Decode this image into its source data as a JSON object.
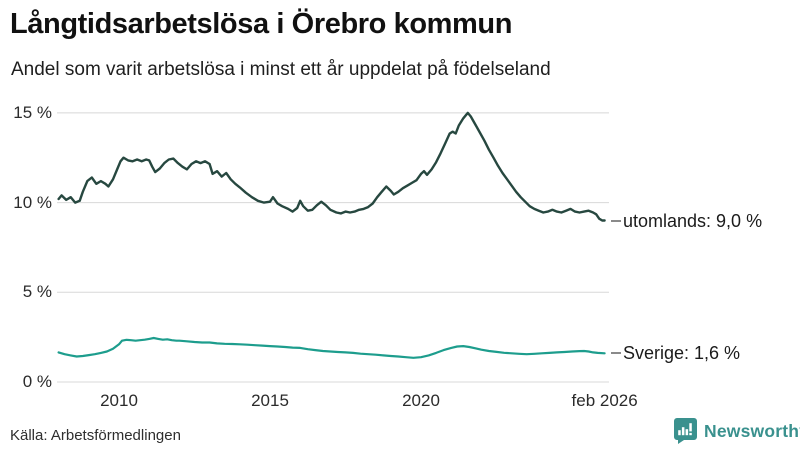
{
  "footer": {
    "brand": "Newsworthy"
  },
  "chart_data": {
    "type": "line",
    "title": "Långtidsarbetslösa i Örebro kommun",
    "subtitle": "Andel som varit arbetslösa i minst ett år uppdelat på födelseland",
    "source": "Källa: Arbetsförmedlingen",
    "grid": "horizontal-only",
    "legend_position": "end-of-line-labels",
    "grid_color": "#d8d8d8",
    "xlim": [
      2008.0,
      2026.4
    ],
    "ylim": [
      0,
      15.5
    ],
    "y_ticks": [
      {
        "v": 15,
        "label": "15 %"
      },
      {
        "v": 10,
        "label": "10 %"
      },
      {
        "v": 5,
        "label": "5 %"
      },
      {
        "v": 0,
        "label": "0 %"
      }
    ],
    "x_ticks": [
      {
        "v": 2010,
        "label": "2010"
      },
      {
        "v": 2015,
        "label": "2015"
      },
      {
        "v": 2020,
        "label": "2020"
      },
      {
        "v": 2026.08,
        "label": "feb 2026"
      }
    ],
    "series": [
      {
        "name": "utomlands",
        "end_label": "utomlands: 9,0 %",
        "end_value": "9,0 %",
        "color": "#274840",
        "stroke_width": 2.4,
        "points": [
          [
            2008.0,
            10.2
          ],
          [
            2008.1,
            10.4
          ],
          [
            2008.25,
            10.15
          ],
          [
            2008.4,
            10.3
          ],
          [
            2008.55,
            10.0
          ],
          [
            2008.7,
            10.1
          ],
          [
            2008.8,
            10.6
          ],
          [
            2008.95,
            11.2
          ],
          [
            2009.1,
            11.4
          ],
          [
            2009.25,
            11.05
          ],
          [
            2009.4,
            11.2
          ],
          [
            2009.55,
            11.05
          ],
          [
            2009.65,
            10.9
          ],
          [
            2009.8,
            11.3
          ],
          [
            2009.95,
            11.9
          ],
          [
            2010.05,
            12.3
          ],
          [
            2010.15,
            12.5
          ],
          [
            2010.3,
            12.35
          ],
          [
            2010.45,
            12.3
          ],
          [
            2010.6,
            12.4
          ],
          [
            2010.75,
            12.3
          ],
          [
            2010.9,
            12.4
          ],
          [
            2011.0,
            12.35
          ],
          [
            2011.1,
            12.0
          ],
          [
            2011.2,
            11.7
          ],
          [
            2011.35,
            11.9
          ],
          [
            2011.5,
            12.2
          ],
          [
            2011.65,
            12.4
          ],
          [
            2011.8,
            12.45
          ],
          [
            2011.95,
            12.2
          ],
          [
            2012.1,
            12.0
          ],
          [
            2012.25,
            11.85
          ],
          [
            2012.4,
            12.15
          ],
          [
            2012.55,
            12.3
          ],
          [
            2012.7,
            12.2
          ],
          [
            2012.85,
            12.3
          ],
          [
            2013.0,
            12.15
          ],
          [
            2013.1,
            11.6
          ],
          [
            2013.25,
            11.75
          ],
          [
            2013.4,
            11.45
          ],
          [
            2013.55,
            11.65
          ],
          [
            2013.7,
            11.3
          ],
          [
            2013.85,
            11.05
          ],
          [
            2014.0,
            10.85
          ],
          [
            2014.2,
            10.55
          ],
          [
            2014.4,
            10.3
          ],
          [
            2014.6,
            10.1
          ],
          [
            2014.8,
            10.0
          ],
          [
            2015.0,
            10.05
          ],
          [
            2015.1,
            10.3
          ],
          [
            2015.25,
            9.95
          ],
          [
            2015.4,
            9.8
          ],
          [
            2015.6,
            9.65
          ],
          [
            2015.75,
            9.5
          ],
          [
            2015.9,
            9.7
          ],
          [
            2016.0,
            10.1
          ],
          [
            2016.1,
            9.8
          ],
          [
            2016.25,
            9.55
          ],
          [
            2016.4,
            9.6
          ],
          [
            2016.55,
            9.85
          ],
          [
            2016.7,
            10.05
          ],
          [
            2016.85,
            9.85
          ],
          [
            2017.0,
            9.6
          ],
          [
            2017.2,
            9.45
          ],
          [
            2017.35,
            9.4
          ],
          [
            2017.5,
            9.5
          ],
          [
            2017.65,
            9.45
          ],
          [
            2017.8,
            9.5
          ],
          [
            2017.95,
            9.6
          ],
          [
            2018.1,
            9.65
          ],
          [
            2018.25,
            9.75
          ],
          [
            2018.4,
            9.95
          ],
          [
            2018.55,
            10.3
          ],
          [
            2018.7,
            10.6
          ],
          [
            2018.85,
            10.9
          ],
          [
            2019.0,
            10.65
          ],
          [
            2019.1,
            10.45
          ],
          [
            2019.25,
            10.6
          ],
          [
            2019.4,
            10.8
          ],
          [
            2019.55,
            10.95
          ],
          [
            2019.7,
            11.1
          ],
          [
            2019.85,
            11.25
          ],
          [
            2020.0,
            11.6
          ],
          [
            2020.1,
            11.75
          ],
          [
            2020.2,
            11.55
          ],
          [
            2020.35,
            11.85
          ],
          [
            2020.5,
            12.25
          ],
          [
            2020.65,
            12.75
          ],
          [
            2020.8,
            13.3
          ],
          [
            2020.95,
            13.85
          ],
          [
            2021.05,
            13.95
          ],
          [
            2021.15,
            13.85
          ],
          [
            2021.25,
            14.3
          ],
          [
            2021.4,
            14.7
          ],
          [
            2021.5,
            14.9
          ],
          [
            2021.55,
            15.0
          ],
          [
            2021.65,
            14.8
          ],
          [
            2021.8,
            14.35
          ],
          [
            2021.95,
            13.9
          ],
          [
            2022.1,
            13.45
          ],
          [
            2022.25,
            12.95
          ],
          [
            2022.4,
            12.5
          ],
          [
            2022.55,
            12.05
          ],
          [
            2022.7,
            11.65
          ],
          [
            2022.85,
            11.3
          ],
          [
            2023.0,
            10.95
          ],
          [
            2023.15,
            10.6
          ],
          [
            2023.3,
            10.3
          ],
          [
            2023.45,
            10.05
          ],
          [
            2023.6,
            9.8
          ],
          [
            2023.75,
            9.65
          ],
          [
            2023.9,
            9.55
          ],
          [
            2024.05,
            9.45
          ],
          [
            2024.2,
            9.5
          ],
          [
            2024.35,
            9.6
          ],
          [
            2024.5,
            9.5
          ],
          [
            2024.65,
            9.45
          ],
          [
            2024.8,
            9.55
          ],
          [
            2024.95,
            9.65
          ],
          [
            2025.1,
            9.5
          ],
          [
            2025.25,
            9.45
          ],
          [
            2025.4,
            9.5
          ],
          [
            2025.55,
            9.55
          ],
          [
            2025.7,
            9.45
          ],
          [
            2025.8,
            9.35
          ],
          [
            2025.9,
            9.1
          ],
          [
            2026.0,
            9.0
          ],
          [
            2026.08,
            9.0
          ]
        ]
      },
      {
        "name": "Sverige",
        "end_label": "Sverige: 1,6 %",
        "end_value": "1,6 %",
        "color": "#1d9d8d",
        "stroke_width": 2.2,
        "points": [
          [
            2008.0,
            1.65
          ],
          [
            2008.2,
            1.55
          ],
          [
            2008.4,
            1.48
          ],
          [
            2008.6,
            1.42
          ],
          [
            2008.8,
            1.45
          ],
          [
            2009.0,
            1.5
          ],
          [
            2009.2,
            1.55
          ],
          [
            2009.4,
            1.62
          ],
          [
            2009.6,
            1.7
          ],
          [
            2009.8,
            1.85
          ],
          [
            2010.0,
            2.1
          ],
          [
            2010.1,
            2.3
          ],
          [
            2010.25,
            2.35
          ],
          [
            2010.4,
            2.33
          ],
          [
            2010.55,
            2.3
          ],
          [
            2010.7,
            2.33
          ],
          [
            2010.85,
            2.36
          ],
          [
            2011.0,
            2.4
          ],
          [
            2011.15,
            2.45
          ],
          [
            2011.3,
            2.4
          ],
          [
            2011.45,
            2.36
          ],
          [
            2011.6,
            2.38
          ],
          [
            2011.75,
            2.33
          ],
          [
            2011.9,
            2.3
          ],
          [
            2012.0,
            2.3
          ],
          [
            2012.25,
            2.27
          ],
          [
            2012.5,
            2.23
          ],
          [
            2012.75,
            2.2
          ],
          [
            2013.0,
            2.2
          ],
          [
            2013.25,
            2.15
          ],
          [
            2013.5,
            2.13
          ],
          [
            2013.75,
            2.12
          ],
          [
            2014.0,
            2.1
          ],
          [
            2014.25,
            2.08
          ],
          [
            2014.5,
            2.05
          ],
          [
            2014.75,
            2.03
          ],
          [
            2015.0,
            2.0
          ],
          [
            2015.25,
            1.98
          ],
          [
            2015.5,
            1.95
          ],
          [
            2015.75,
            1.92
          ],
          [
            2016.0,
            1.9
          ],
          [
            2016.25,
            1.83
          ],
          [
            2016.5,
            1.78
          ],
          [
            2016.75,
            1.73
          ],
          [
            2017.0,
            1.7
          ],
          [
            2017.25,
            1.67
          ],
          [
            2017.5,
            1.65
          ],
          [
            2017.75,
            1.62
          ],
          [
            2018.0,
            1.58
          ],
          [
            2018.25,
            1.55
          ],
          [
            2018.5,
            1.52
          ],
          [
            2018.75,
            1.48
          ],
          [
            2019.0,
            1.45
          ],
          [
            2019.25,
            1.42
          ],
          [
            2019.5,
            1.38
          ],
          [
            2019.75,
            1.35
          ],
          [
            2020.0,
            1.38
          ],
          [
            2020.25,
            1.48
          ],
          [
            2020.5,
            1.62
          ],
          [
            2020.75,
            1.78
          ],
          [
            2021.0,
            1.9
          ],
          [
            2021.2,
            1.98
          ],
          [
            2021.4,
            2.0
          ],
          [
            2021.6,
            1.95
          ],
          [
            2021.8,
            1.88
          ],
          [
            2022.0,
            1.8
          ],
          [
            2022.25,
            1.73
          ],
          [
            2022.5,
            1.68
          ],
          [
            2022.75,
            1.63
          ],
          [
            2023.0,
            1.6
          ],
          [
            2023.25,
            1.57
          ],
          [
            2023.5,
            1.55
          ],
          [
            2023.75,
            1.57
          ],
          [
            2024.0,
            1.6
          ],
          [
            2024.25,
            1.62
          ],
          [
            2024.5,
            1.65
          ],
          [
            2024.75,
            1.67
          ],
          [
            2025.0,
            1.7
          ],
          [
            2025.25,
            1.72
          ],
          [
            2025.4,
            1.73
          ],
          [
            2025.55,
            1.7
          ],
          [
            2025.7,
            1.65
          ],
          [
            2025.85,
            1.62
          ],
          [
            2026.08,
            1.6
          ]
        ]
      }
    ]
  }
}
